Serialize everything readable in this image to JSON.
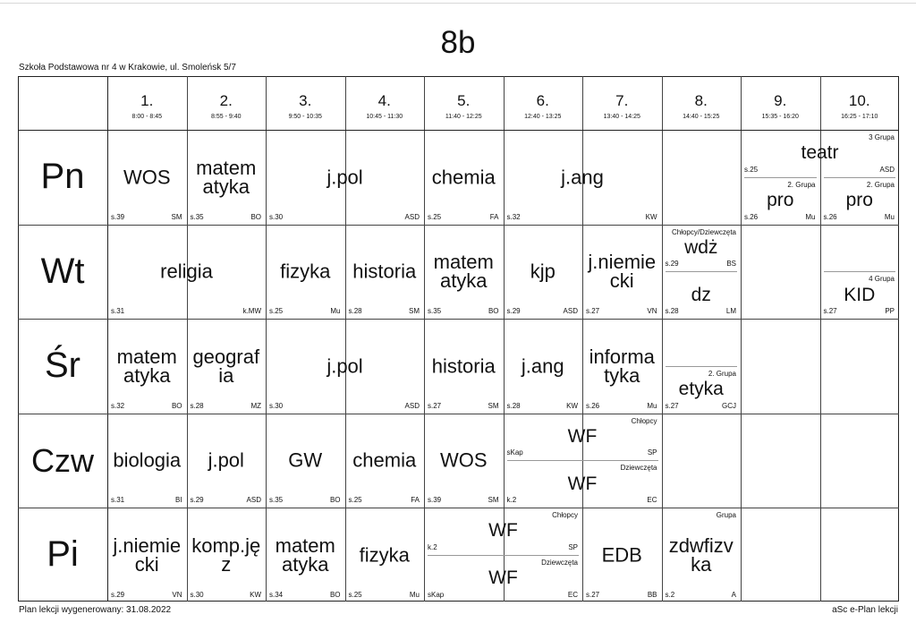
{
  "title": "8b",
  "school": "Szkoła Podstawowa nr 4 w Krakowie, ul. Smoleńsk 5/7",
  "footer_left": "Plan lekcji wygenerowany: 31.08.2022",
  "footer_right": "aSc e-Plan lekcji",
  "periods": [
    {
      "num": "1.",
      "time": "8:00 - 8:45"
    },
    {
      "num": "2.",
      "time": "8:55 - 9:40"
    },
    {
      "num": "3.",
      "time": "9:50 - 10:35"
    },
    {
      "num": "4.",
      "time": "10:45 - 11:30"
    },
    {
      "num": "5.",
      "time": "11:40 - 12:25"
    },
    {
      "num": "6.",
      "time": "12:40 - 13:25"
    },
    {
      "num": "7.",
      "time": "13:40 - 14:25"
    },
    {
      "num": "8.",
      "time": "14:40 - 15:25"
    },
    {
      "num": "9.",
      "time": "15:35 - 16:20"
    },
    {
      "num": "10.",
      "time": "16:25 - 17:10"
    }
  ],
  "days": [
    "Pn",
    "Wt",
    "Śr",
    "Czw",
    "Pi"
  ],
  "lessons": [
    {
      "day": 0,
      "col": 0,
      "span": 1,
      "subject": "WOS",
      "room": "s.39",
      "teacher": "SM"
    },
    {
      "day": 0,
      "col": 1,
      "span": 1,
      "subject": "matematyka",
      "room": "s.35",
      "teacher": "BO"
    },
    {
      "day": 0,
      "col": 2,
      "span": 2,
      "subject": "j.pol",
      "room": "s.30",
      "teacher": "ASD"
    },
    {
      "day": 0,
      "col": 4,
      "span": 1,
      "subject": "chemia",
      "room": "s.25",
      "teacher": "FA"
    },
    {
      "day": 0,
      "col": 5,
      "span": 2,
      "subject": "j.ang",
      "room": "s.32",
      "teacher": "KW"
    },
    {
      "day": 0,
      "col": 8,
      "span": 2,
      "part": 0,
      "parts": 2,
      "subject": "teatr",
      "room": "s.25",
      "teacher": "ASD",
      "group": "3 Grupa"
    },
    {
      "day": 0,
      "col": 8,
      "span": 1,
      "part": 1,
      "parts": 2,
      "subject": "pro",
      "room": "s.26",
      "teacher": "Mu",
      "group": "2. Grupa"
    },
    {
      "day": 0,
      "col": 9,
      "span": 1,
      "part": 1,
      "parts": 2,
      "subject": "pro",
      "room": "s.26",
      "teacher": "Mu",
      "group": "2. Grupa"
    },
    {
      "day": 1,
      "col": 0,
      "span": 2,
      "subject": "religia",
      "room": "s.31",
      "teacher": "k.MW"
    },
    {
      "day": 1,
      "col": 2,
      "span": 1,
      "subject": "fizyka",
      "room": "s.25",
      "teacher": "Mu"
    },
    {
      "day": 1,
      "col": 3,
      "span": 1,
      "subject": "historia",
      "room": "s.28",
      "teacher": "SM"
    },
    {
      "day": 1,
      "col": 4,
      "span": 1,
      "subject": "matematyka",
      "room": "s.35",
      "teacher": "BO"
    },
    {
      "day": 1,
      "col": 5,
      "span": 1,
      "subject": "kjp",
      "room": "s.29",
      "teacher": "ASD"
    },
    {
      "day": 1,
      "col": 6,
      "span": 1,
      "subject": "j.niemiecki",
      "room": "s.27",
      "teacher": "VN"
    },
    {
      "day": 1,
      "col": 7,
      "span": 1,
      "part": 0,
      "parts": 2,
      "subject": "wdż",
      "room": "s.29",
      "teacher": "BS",
      "group": "Chłopcy/Dziewczęta"
    },
    {
      "day": 1,
      "col": 7,
      "span": 1,
      "part": 1,
      "parts": 2,
      "subject": "dz",
      "room": "s.28",
      "teacher": "LM"
    },
    {
      "day": 1,
      "col": 9,
      "span": 1,
      "part": 1,
      "parts": 2,
      "subject": "KID",
      "room": "s.27",
      "teacher": "PP",
      "group": "4 Grupa"
    },
    {
      "day": 2,
      "col": 0,
      "span": 1,
      "subject": "matematyka",
      "room": "s.32",
      "teacher": "BO"
    },
    {
      "day": 2,
      "col": 1,
      "span": 1,
      "subject": "geografia",
      "room": "s.28",
      "teacher": "MZ"
    },
    {
      "day": 2,
      "col": 2,
      "span": 2,
      "subject": "j.pol",
      "room": "s.30",
      "teacher": "ASD"
    },
    {
      "day": 2,
      "col": 4,
      "span": 1,
      "subject": "historia",
      "room": "s.27",
      "teacher": "SM"
    },
    {
      "day": 2,
      "col": 5,
      "span": 1,
      "subject": "j.ang",
      "room": "s.28",
      "teacher": "KW"
    },
    {
      "day": 2,
      "col": 6,
      "span": 1,
      "subject": "informatyka",
      "room": "s.26",
      "teacher": "Mu"
    },
    {
      "day": 2,
      "col": 7,
      "span": 1,
      "part": 1,
      "parts": 2,
      "subject": "etyka",
      "room": "s.27",
      "teacher": "GCJ",
      "group": "2. Grupa"
    },
    {
      "day": 3,
      "col": 0,
      "span": 1,
      "subject": "biologia",
      "room": "s.31",
      "teacher": "BI"
    },
    {
      "day": 3,
      "col": 1,
      "span": 1,
      "subject": "j.pol",
      "room": "s.29",
      "teacher": "ASD"
    },
    {
      "day": 3,
      "col": 2,
      "span": 1,
      "subject": "GW",
      "room": "s.35",
      "teacher": "BO"
    },
    {
      "day": 3,
      "col": 3,
      "span": 1,
      "subject": "chemia",
      "room": "s.25",
      "teacher": "FA"
    },
    {
      "day": 3,
      "col": 4,
      "span": 1,
      "subject": "WOS",
      "room": "s.39",
      "teacher": "SM"
    },
    {
      "day": 3,
      "col": 5,
      "span": 2,
      "part": 0,
      "parts": 2,
      "subject": "WF",
      "room": "sKap",
      "teacher": "SP",
      "group": "Chłopcy"
    },
    {
      "day": 3,
      "col": 5,
      "span": 2,
      "part": 1,
      "parts": 2,
      "subject": "WF",
      "room": "k.2",
      "teacher": "EC",
      "group": "Dziewczęta"
    },
    {
      "day": 4,
      "col": 0,
      "span": 1,
      "subject": "j.niemiecki",
      "room": "s.29",
      "teacher": "VN"
    },
    {
      "day": 4,
      "col": 1,
      "span": 1,
      "subject": "komp.jęz",
      "room": "s.30",
      "teacher": "KW"
    },
    {
      "day": 4,
      "col": 2,
      "span": 1,
      "subject": "matematyka",
      "room": "s.34",
      "teacher": "BO"
    },
    {
      "day": 4,
      "col": 3,
      "span": 1,
      "subject": "fizyka",
      "room": "s.25",
      "teacher": "Mu"
    },
    {
      "day": 4,
      "col": 4,
      "span": 2,
      "part": 0,
      "parts": 2,
      "subject": "WF",
      "room": "k.2",
      "teacher": "SP",
      "group": "Chłopcy"
    },
    {
      "day": 4,
      "col": 4,
      "span": 2,
      "part": 1,
      "parts": 2,
      "subject": "WF",
      "room": "sKap",
      "teacher": "EC",
      "group": "Dziewczęta"
    },
    {
      "day": 4,
      "col": 6,
      "span": 1,
      "subject": "EDB",
      "room": "s.27",
      "teacher": "BB"
    },
    {
      "day": 4,
      "col": 7,
      "span": 1,
      "subject": "zdwfizvka",
      "room": "s.2",
      "teacher": "A",
      "group": "Grupa"
    }
  ]
}
